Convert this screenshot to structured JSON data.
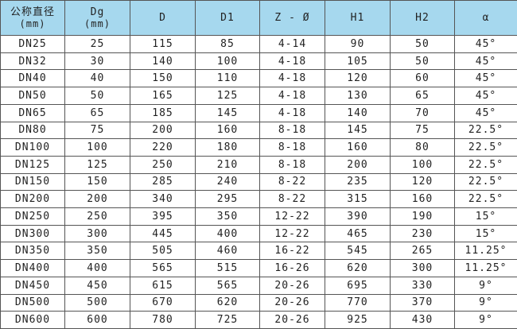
{
  "header_color": "#a6d8ee",
  "headers": [
    {
      "main": "公称直径",
      "sub": "(mm)"
    },
    {
      "main": "Dg",
      "sub": "(mm)"
    },
    {
      "main": "D",
      "sub": ""
    },
    {
      "main": "D1",
      "sub": ""
    },
    {
      "main": "Z - Ø",
      "sub": ""
    },
    {
      "main": "H1",
      "sub": ""
    },
    {
      "main": "H2",
      "sub": ""
    },
    {
      "main": "α",
      "sub": ""
    }
  ],
  "rows": [
    [
      "DN25",
      "25",
      "115",
      "85",
      "4-14",
      "90",
      "50",
      "45°"
    ],
    [
      "DN32",
      "30",
      "140",
      "100",
      "4-18",
      "105",
      "50",
      "45°"
    ],
    [
      "DN40",
      "40",
      "150",
      "110",
      "4-18",
      "120",
      "60",
      "45°"
    ],
    [
      "DN50",
      "50",
      "165",
      "125",
      "4-18",
      "130",
      "65",
      "45°"
    ],
    [
      "DN65",
      "65",
      "185",
      "145",
      "4-18",
      "140",
      "70",
      "45°"
    ],
    [
      "DN80",
      "75",
      "200",
      "160",
      "8-18",
      "145",
      "75",
      "22.5°"
    ],
    [
      "DN100",
      "100",
      "220",
      "180",
      "8-18",
      "160",
      "80",
      "22.5°"
    ],
    [
      "DN125",
      "125",
      "250",
      "210",
      "8-18",
      "200",
      "100",
      "22.5°"
    ],
    [
      "DN150",
      "150",
      "285",
      "240",
      "8-22",
      "235",
      "120",
      "22.5°"
    ],
    [
      "DN200",
      "200",
      "340",
      "295",
      "8-22",
      "315",
      "160",
      "22.5°"
    ],
    [
      "DN250",
      "250",
      "395",
      "350",
      "12-22",
      "390",
      "190",
      "15°"
    ],
    [
      "DN300",
      "300",
      "445",
      "400",
      "12-22",
      "465",
      "230",
      "15°"
    ],
    [
      "DN350",
      "350",
      "505",
      "460",
      "16-22",
      "545",
      "265",
      "11.25°"
    ],
    [
      "DN400",
      "400",
      "565",
      "515",
      "16-26",
      "620",
      "300",
      "11.25°"
    ],
    [
      "DN450",
      "450",
      "615",
      "565",
      "20-26",
      "695",
      "330",
      "9°"
    ],
    [
      "DN500",
      "500",
      "670",
      "620",
      "20-26",
      "770",
      "370",
      "9°"
    ],
    [
      "DN600",
      "600",
      "780",
      "725",
      "20-26",
      "925",
      "430",
      "9°"
    ]
  ]
}
